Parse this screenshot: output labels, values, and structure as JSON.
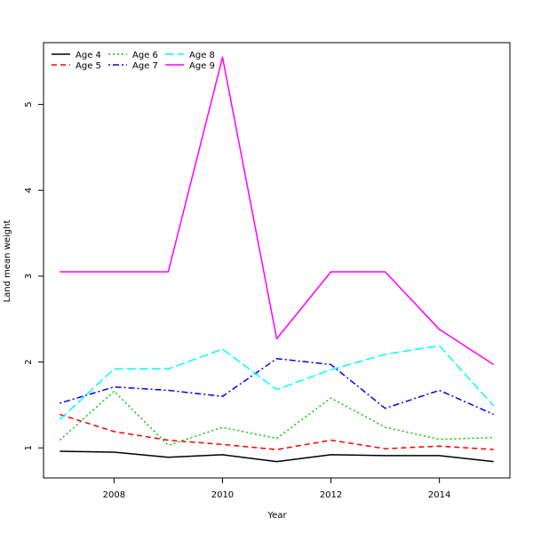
{
  "chart_data": {
    "type": "line",
    "title": "",
    "xlabel": "Year",
    "ylabel": "Land mean weight",
    "xlim": [
      2006.7,
      2015.3
    ],
    "ylim": [
      0.65,
      5.72
    ],
    "xticks": [
      "2008",
      "2010",
      "2012",
      "2014"
    ],
    "yticks": [
      "1",
      "2",
      "3",
      "4",
      "5"
    ],
    "grid": false,
    "legend_position": "top-left",
    "x": [
      2007,
      2008,
      2009,
      2010,
      2011,
      2012,
      2013,
      2014,
      2015
    ],
    "series": [
      {
        "name": "Age 4",
        "color": "#000000",
        "dash": "solid",
        "values": [
          0.96,
          0.95,
          0.89,
          0.92,
          0.84,
          0.92,
          0.91,
          0.91,
          0.84
        ]
      },
      {
        "name": "Age 5",
        "color": "#ff0000",
        "dash": "dashed",
        "values": [
          1.39,
          1.19,
          1.09,
          1.04,
          0.98,
          1.09,
          0.99,
          1.02,
          0.98
        ]
      },
      {
        "name": "Age 6",
        "color": "#00cd00",
        "dash": "dotted",
        "values": [
          1.09,
          1.66,
          1.03,
          1.24,
          1.11,
          1.58,
          1.24,
          1.1,
          1.12
        ]
      },
      {
        "name": "Age 7",
        "color": "#0000ff",
        "dash": "dotdash",
        "values": [
          1.52,
          1.71,
          1.67,
          1.6,
          2.04,
          1.97,
          1.46,
          1.67,
          1.39
        ]
      },
      {
        "name": "Age 8",
        "color": "#00ffff",
        "dash": "longdash",
        "values": [
          1.33,
          1.92,
          1.92,
          2.15,
          1.68,
          1.91,
          2.09,
          2.19,
          1.49
        ]
      },
      {
        "name": "Age 9",
        "color": "#ff00ff",
        "dash": "solid",
        "values": [
          3.05,
          3.05,
          3.05,
          5.55,
          2.27,
          3.05,
          3.05,
          2.38,
          1.97
        ]
      }
    ]
  }
}
